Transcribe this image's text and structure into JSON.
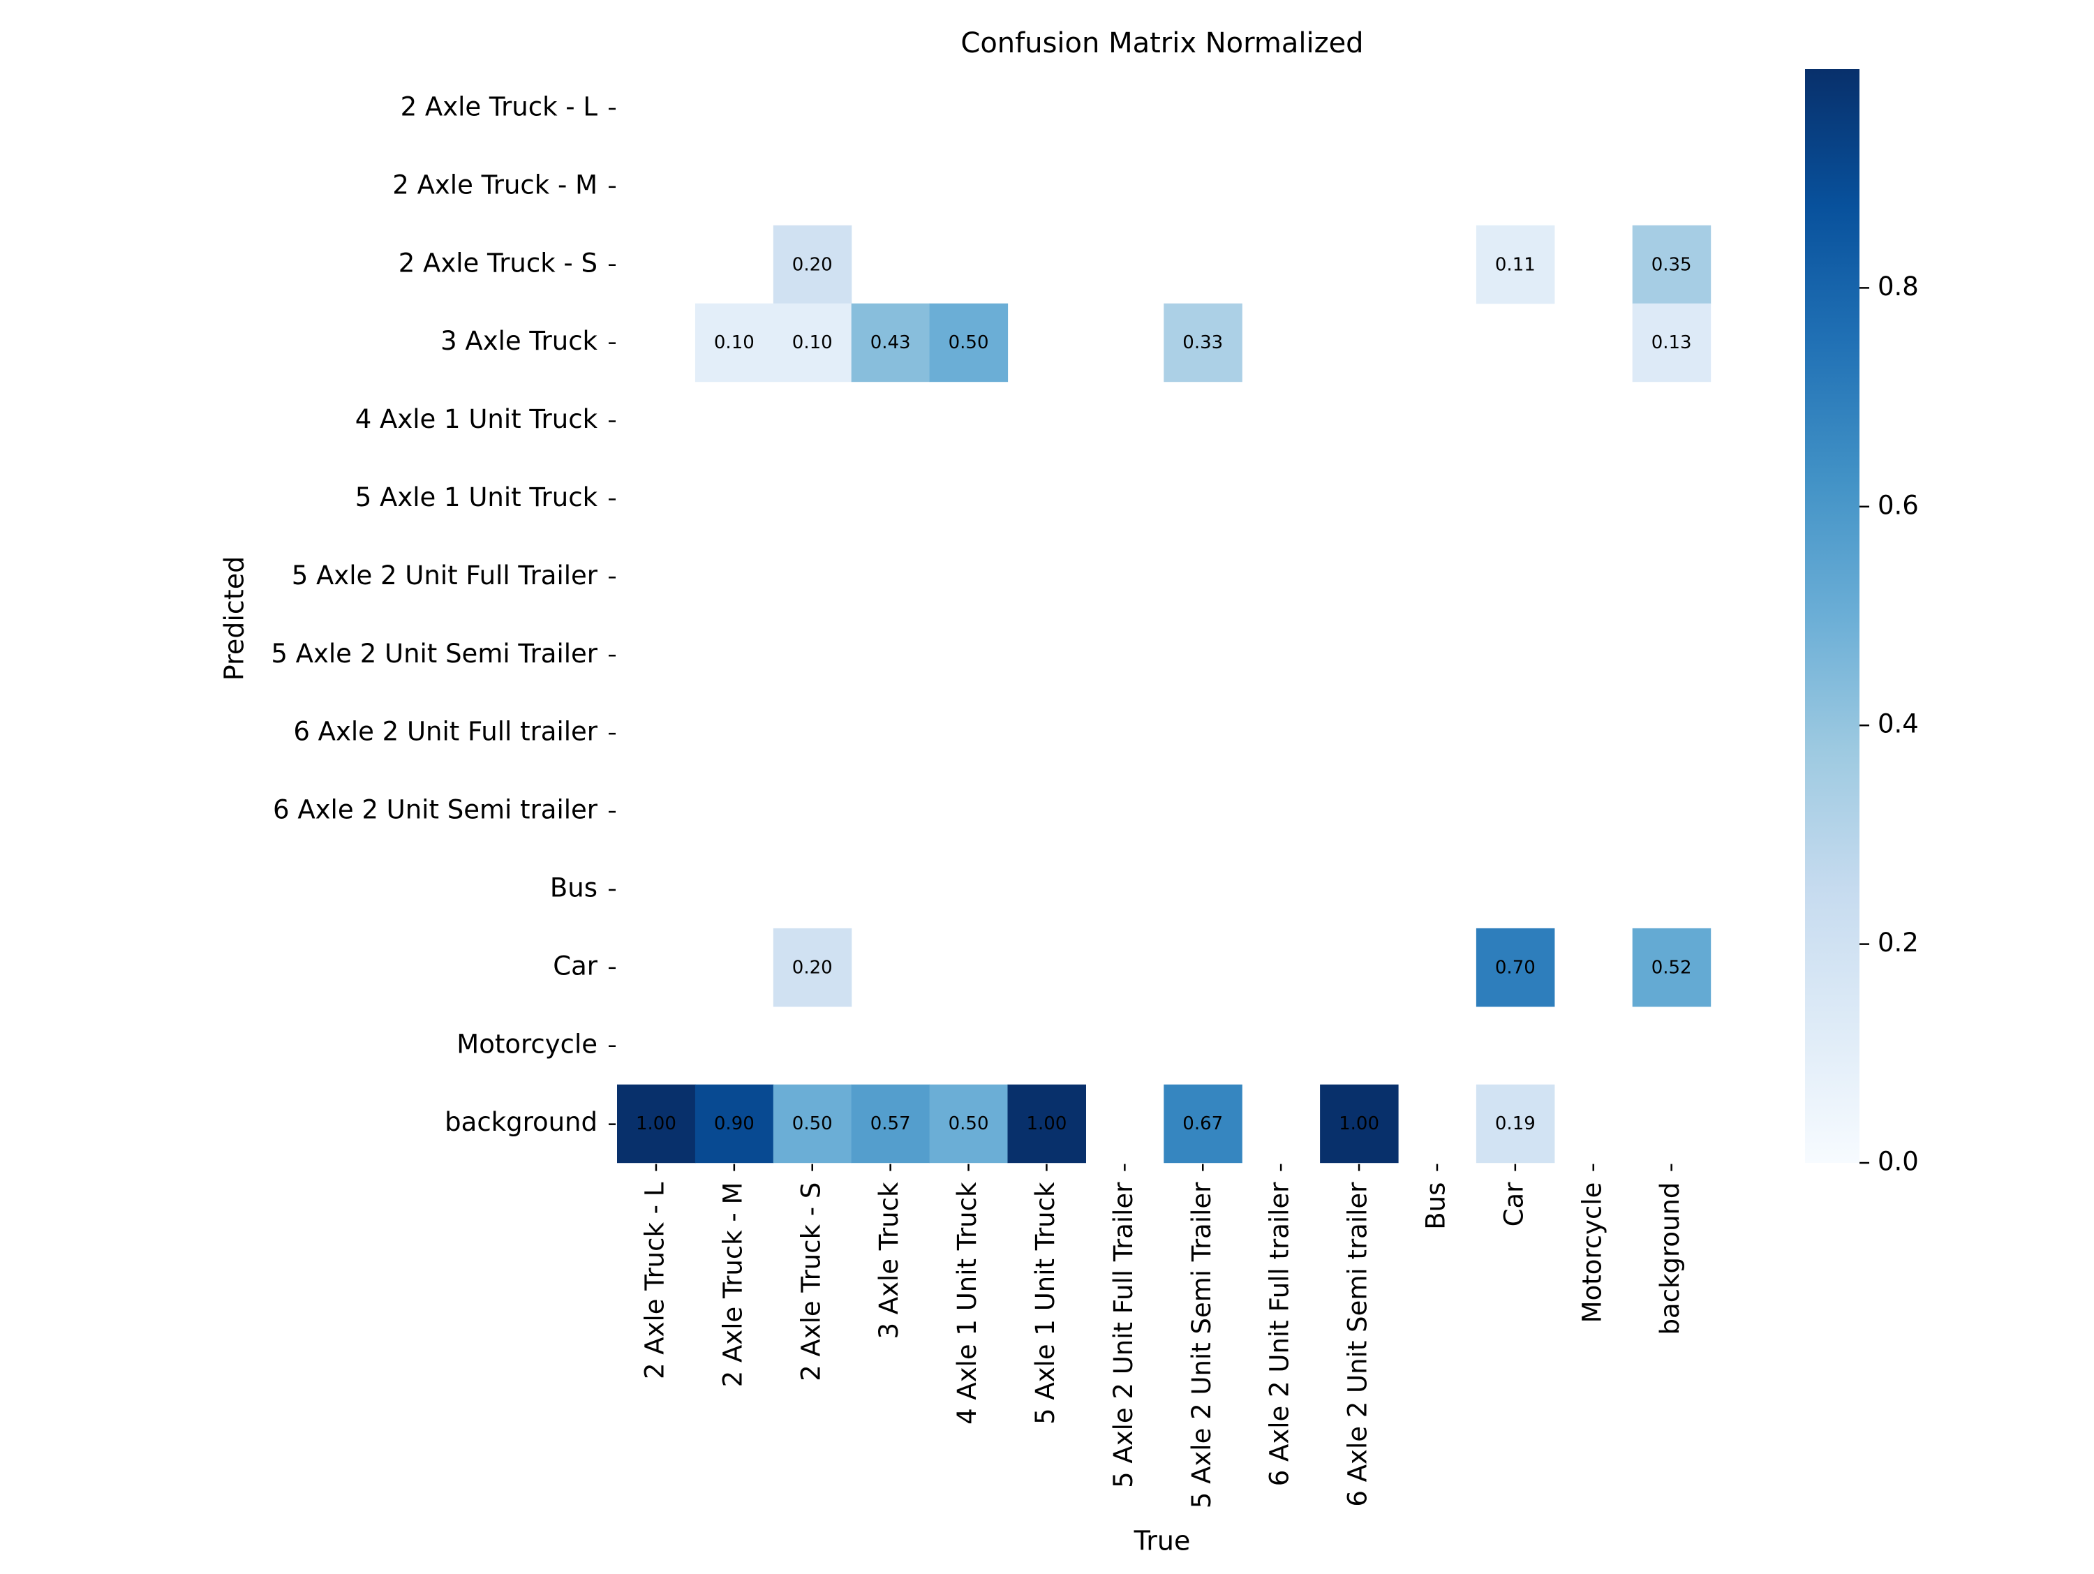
{
  "chart_data": {
    "type": "heatmap",
    "title": "Confusion Matrix Normalized",
    "xlabel": "True",
    "ylabel": "Predicted",
    "x_categories": [
      "2 Axle Truck - L",
      "2 Axle Truck - M",
      "2 Axle Truck - S",
      "3 Axle Truck",
      "4 Axle 1 Unit Truck",
      "5 Axle 1 Unit Truck",
      "5 Axle 2 Unit Full Trailer",
      "5 Axle 2 Unit Semi Trailer",
      "6 Axle 2 Unit Full trailer",
      "6 Axle 2 Unit Semi trailer",
      "Bus",
      "Car",
      "Motorcycle",
      "background"
    ],
    "y_categories": [
      "2 Axle Truck - L",
      "2 Axle Truck - M",
      "2 Axle Truck - S",
      "3 Axle Truck",
      "4 Axle 1 Unit Truck",
      "5 Axle 1 Unit Truck",
      "5 Axle 2 Unit Full Trailer",
      "5 Axle 2 Unit Semi Trailer",
      "6 Axle 2 Unit Full trailer",
      "6 Axle 2 Unit Semi trailer",
      "Bus",
      "Car",
      "Motorcycle",
      "background"
    ],
    "cells": [
      {
        "row": "2 Axle Truck - S",
        "col": "2 Axle Truck - S",
        "value": 0.2,
        "label": "0.20"
      },
      {
        "row": "2 Axle Truck - S",
        "col": "Car",
        "value": 0.11,
        "label": "0.11"
      },
      {
        "row": "2 Axle Truck - S",
        "col": "background",
        "value": 0.35,
        "label": "0.35"
      },
      {
        "row": "3 Axle Truck",
        "col": "2 Axle Truck - M",
        "value": 0.1,
        "label": "0.10"
      },
      {
        "row": "3 Axle Truck",
        "col": "2 Axle Truck - S",
        "value": 0.1,
        "label": "0.10"
      },
      {
        "row": "3 Axle Truck",
        "col": "3 Axle Truck",
        "value": 0.43,
        "label": "0.43"
      },
      {
        "row": "3 Axle Truck",
        "col": "4 Axle 1 Unit Truck",
        "value": 0.5,
        "label": "0.50"
      },
      {
        "row": "3 Axle Truck",
        "col": "5 Axle 2 Unit Semi Trailer",
        "value": 0.33,
        "label": "0.33"
      },
      {
        "row": "3 Axle Truck",
        "col": "background",
        "value": 0.13,
        "label": "0.13"
      },
      {
        "row": "Car",
        "col": "2 Axle Truck - S",
        "value": 0.2,
        "label": "0.20"
      },
      {
        "row": "Car",
        "col": "Car",
        "value": 0.7,
        "label": "0.70"
      },
      {
        "row": "Car",
        "col": "background",
        "value": 0.52,
        "label": "0.52"
      },
      {
        "row": "background",
        "col": "2 Axle Truck - L",
        "value": 1.0,
        "label": "1.00"
      },
      {
        "row": "background",
        "col": "2 Axle Truck - M",
        "value": 0.9,
        "label": "0.90"
      },
      {
        "row": "background",
        "col": "2 Axle Truck - S",
        "value": 0.5,
        "label": "0.50"
      },
      {
        "row": "background",
        "col": "3 Axle Truck",
        "value": 0.57,
        "label": "0.57"
      },
      {
        "row": "background",
        "col": "4 Axle 1 Unit Truck",
        "value": 0.5,
        "label": "0.50"
      },
      {
        "row": "background",
        "col": "5 Axle 1 Unit Truck",
        "value": 1.0,
        "label": "1.00"
      },
      {
        "row": "background",
        "col": "5 Axle 2 Unit Semi Trailer",
        "value": 0.67,
        "label": "0.67"
      },
      {
        "row": "background",
        "col": "6 Axle 2 Unit Semi trailer",
        "value": 1.0,
        "label": "1.00"
      },
      {
        "row": "background",
        "col": "Car",
        "value": 0.19,
        "label": "0.19"
      }
    ],
    "colorbar": {
      "colormap": "Blues",
      "range": [
        0,
        1
      ],
      "ticks": [
        0.0,
        0.2,
        0.4,
        0.6,
        0.8
      ],
      "tick_labels": [
        "0.0",
        "0.2",
        "0.4",
        "0.6",
        "0.8"
      ]
    },
    "grid": false
  }
}
